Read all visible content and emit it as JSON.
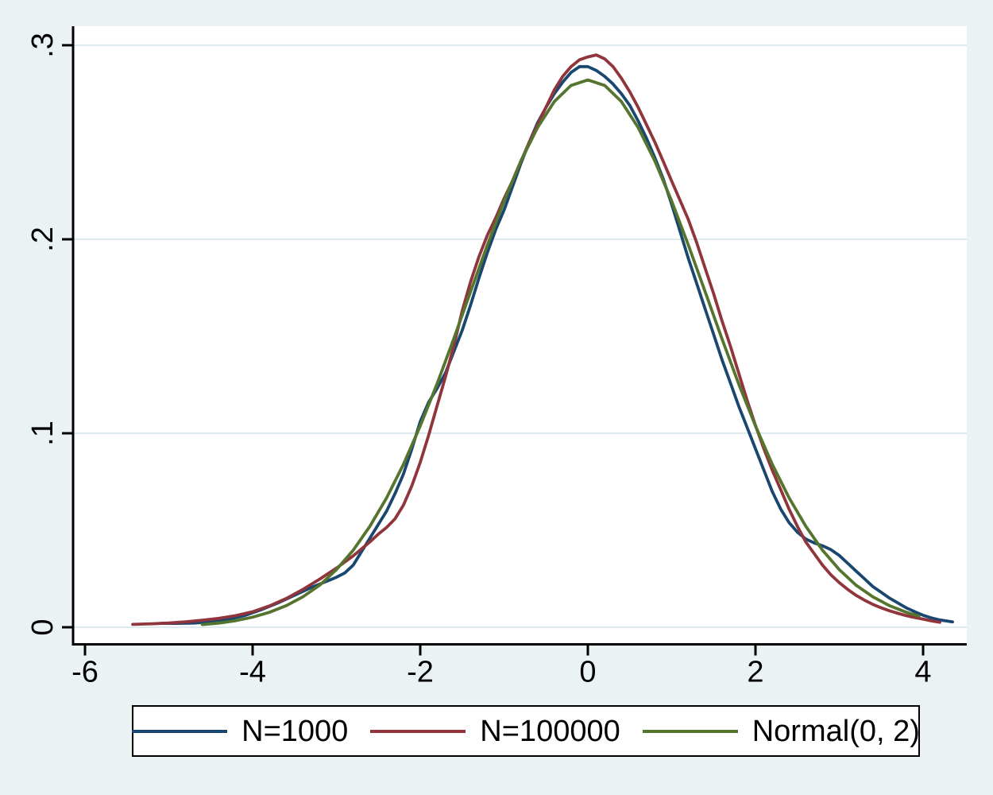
{
  "colors": {
    "background": "#eaf2f3",
    "plot_background": "#ffffff",
    "gridline": "#dfeaee",
    "axis": "#000000",
    "tick_label": "#000000",
    "legend_background": "#ffffff",
    "legend_border": "#000000"
  },
  "legend": {
    "entries": [
      {
        "label": "N=1000",
        "color": "#1a476f"
      },
      {
        "label": "N=100000",
        "color": "#90353b"
      },
      {
        "label": "Normal(0, 2)",
        "color": "#55752f"
      }
    ]
  },
  "chart_data": {
    "type": "line",
    "title": "",
    "xlabel": "",
    "ylabel": "",
    "grid": "horizontal",
    "legend_position": "bottom",
    "xlim": [
      -6.142,
      4.521
    ],
    "ylim": [
      -0.0088,
      0.3098
    ],
    "x_ticks": [
      -6,
      -4,
      -2,
      0,
      2,
      4
    ],
    "x_tick_labels": [
      "-6",
      "-4",
      "-2",
      "0",
      "2",
      "4"
    ],
    "y_ticks": [
      0,
      0.1,
      0.2,
      0.3
    ],
    "y_tick_labels": [
      "0",
      ".1",
      ".2",
      ".3"
    ],
    "series": [
      {
        "name": "N=1000",
        "color": "#1a476f",
        "points": [
          [
            -5.1,
            0.002
          ],
          [
            -4.9,
            0.002
          ],
          [
            -4.7,
            0.0022
          ],
          [
            -4.5,
            0.0028
          ],
          [
            -4.3,
            0.004
          ],
          [
            -4.1,
            0.006
          ],
          [
            -3.9,
            0.009
          ],
          [
            -3.7,
            0.0125
          ],
          [
            -3.5,
            0.0165
          ],
          [
            -3.3,
            0.0205
          ],
          [
            -3.1,
            0.024
          ],
          [
            -3.0,
            0.0258
          ],
          [
            -2.9,
            0.028
          ],
          [
            -2.8,
            0.032
          ],
          [
            -2.7,
            0.039
          ],
          [
            -2.6,
            0.046
          ],
          [
            -2.5,
            0.053
          ],
          [
            -2.4,
            0.06
          ],
          [
            -2.3,
            0.069
          ],
          [
            -2.2,
            0.079
          ],
          [
            -2.1,
            0.092
          ],
          [
            -2.0,
            0.106
          ],
          [
            -1.9,
            0.116
          ],
          [
            -1.8,
            0.123
          ],
          [
            -1.7,
            0.131
          ],
          [
            -1.6,
            0.142
          ],
          [
            -1.5,
            0.153
          ],
          [
            -1.4,
            0.166
          ],
          [
            -1.3,
            0.18
          ],
          [
            -1.2,
            0.193
          ],
          [
            -1.1,
            0.205
          ],
          [
            -1.0,
            0.215
          ],
          [
            -0.9,
            0.227
          ],
          [
            -0.8,
            0.239
          ],
          [
            -0.7,
            0.25
          ],
          [
            -0.6,
            0.26
          ],
          [
            -0.5,
            0.268
          ],
          [
            -0.4,
            0.275
          ],
          [
            -0.3,
            0.281
          ],
          [
            -0.2,
            0.286
          ],
          [
            -0.1,
            0.289
          ],
          [
            0.0,
            0.289
          ],
          [
            0.1,
            0.287
          ],
          [
            0.2,
            0.284
          ],
          [
            0.3,
            0.28
          ],
          [
            0.4,
            0.275
          ],
          [
            0.5,
            0.269
          ],
          [
            0.6,
            0.261
          ],
          [
            0.7,
            0.252
          ],
          [
            0.8,
            0.242
          ],
          [
            0.9,
            0.231
          ],
          [
            1.0,
            0.218
          ],
          [
            1.1,
            0.204
          ],
          [
            1.2,
            0.19
          ],
          [
            1.3,
            0.177
          ],
          [
            1.4,
            0.164
          ],
          [
            1.5,
            0.151
          ],
          [
            1.6,
            0.138
          ],
          [
            1.7,
            0.126
          ],
          [
            1.8,
            0.114
          ],
          [
            1.9,
            0.103
          ],
          [
            2.0,
            0.092
          ],
          [
            2.1,
            0.081
          ],
          [
            2.2,
            0.07
          ],
          [
            2.3,
            0.061
          ],
          [
            2.4,
            0.054
          ],
          [
            2.5,
            0.049
          ],
          [
            2.6,
            0.0455
          ],
          [
            2.7,
            0.0435
          ],
          [
            2.8,
            0.042
          ],
          [
            2.9,
            0.04
          ],
          [
            3.0,
            0.037
          ],
          [
            3.1,
            0.033
          ],
          [
            3.2,
            0.029
          ],
          [
            3.3,
            0.025
          ],
          [
            3.4,
            0.021
          ],
          [
            3.5,
            0.018
          ],
          [
            3.6,
            0.015
          ],
          [
            3.7,
            0.0125
          ],
          [
            3.8,
            0.01
          ],
          [
            3.9,
            0.008
          ],
          [
            4.0,
            0.0062
          ],
          [
            4.1,
            0.0048
          ],
          [
            4.2,
            0.0038
          ],
          [
            4.35,
            0.0028
          ]
        ]
      },
      {
        "name": "N=100000",
        "color": "#90353b",
        "points": [
          [
            -5.43,
            0.0015
          ],
          [
            -5.2,
            0.0018
          ],
          [
            -5.0,
            0.0022
          ],
          [
            -4.8,
            0.0028
          ],
          [
            -4.6,
            0.0036
          ],
          [
            -4.4,
            0.0046
          ],
          [
            -4.2,
            0.006
          ],
          [
            -4.0,
            0.008
          ],
          [
            -3.8,
            0.011
          ],
          [
            -3.6,
            0.0148
          ],
          [
            -3.4,
            0.0195
          ],
          [
            -3.2,
            0.0248
          ],
          [
            -3.0,
            0.0305
          ],
          [
            -2.8,
            0.0368
          ],
          [
            -2.6,
            0.044
          ],
          [
            -2.5,
            0.048
          ],
          [
            -2.4,
            0.0515
          ],
          [
            -2.3,
            0.056
          ],
          [
            -2.2,
            0.063
          ],
          [
            -2.1,
            0.073
          ],
          [
            -2.0,
            0.085
          ],
          [
            -1.9,
            0.099
          ],
          [
            -1.8,
            0.114
          ],
          [
            -1.7,
            0.129
          ],
          [
            -1.6,
            0.145
          ],
          [
            -1.5,
            0.163
          ],
          [
            -1.4,
            0.178
          ],
          [
            -1.3,
            0.191
          ],
          [
            -1.2,
            0.202
          ],
          [
            -1.1,
            0.211
          ],
          [
            -1.0,
            0.221
          ],
          [
            -0.9,
            0.23
          ],
          [
            -0.8,
            0.24
          ],
          [
            -0.7,
            0.25
          ],
          [
            -0.6,
            0.259
          ],
          [
            -0.5,
            0.268
          ],
          [
            -0.4,
            0.277
          ],
          [
            -0.3,
            0.284
          ],
          [
            -0.2,
            0.289
          ],
          [
            -0.1,
            0.2925
          ],
          [
            0.0,
            0.294
          ],
          [
            0.1,
            0.295
          ],
          [
            0.2,
            0.293
          ],
          [
            0.3,
            0.289
          ],
          [
            0.4,
            0.283
          ],
          [
            0.5,
            0.276
          ],
          [
            0.6,
            0.268
          ],
          [
            0.7,
            0.259
          ],
          [
            0.8,
            0.25
          ],
          [
            0.9,
            0.24
          ],
          [
            1.0,
            0.23
          ],
          [
            1.1,
            0.22
          ],
          [
            1.2,
            0.21
          ],
          [
            1.3,
            0.198
          ],
          [
            1.4,
            0.185
          ],
          [
            1.5,
            0.172
          ],
          [
            1.6,
            0.158
          ],
          [
            1.7,
            0.145
          ],
          [
            1.8,
            0.131
          ],
          [
            1.9,
            0.117
          ],
          [
            2.0,
            0.104
          ],
          [
            2.1,
            0.092
          ],
          [
            2.2,
            0.081
          ],
          [
            2.3,
            0.071
          ],
          [
            2.4,
            0.061
          ],
          [
            2.5,
            0.052
          ],
          [
            2.6,
            0.044
          ],
          [
            2.7,
            0.038
          ],
          [
            2.8,
            0.032
          ],
          [
            2.9,
            0.027
          ],
          [
            3.0,
            0.023
          ],
          [
            3.1,
            0.0195
          ],
          [
            3.2,
            0.0165
          ],
          [
            3.3,
            0.014
          ],
          [
            3.4,
            0.0118
          ],
          [
            3.5,
            0.01
          ],
          [
            3.6,
            0.0085
          ],
          [
            3.7,
            0.0072
          ],
          [
            3.8,
            0.006
          ],
          [
            3.9,
            0.005
          ],
          [
            4.0,
            0.0042
          ],
          [
            4.1,
            0.0033
          ],
          [
            4.2,
            0.0026
          ]
        ]
      },
      {
        "name": "Normal(0, 2)",
        "color": "#55752f",
        "points": [
          [
            -4.6,
            0.0014
          ],
          [
            -4.4,
            0.0022
          ],
          [
            -4.2,
            0.0034
          ],
          [
            -4.0,
            0.0052
          ],
          [
            -3.8,
            0.0077
          ],
          [
            -3.6,
            0.0111
          ],
          [
            -3.4,
            0.0157
          ],
          [
            -3.2,
            0.0217
          ],
          [
            -3.0,
            0.0297
          ],
          [
            -2.8,
            0.0397
          ],
          [
            -2.6,
            0.0521
          ],
          [
            -2.4,
            0.0668
          ],
          [
            -2.2,
            0.084
          ],
          [
            -2.0,
            0.1038
          ],
          [
            -1.8,
            0.1254
          ],
          [
            -1.6,
            0.1487
          ],
          [
            -1.4,
            0.1729
          ],
          [
            -1.2,
            0.1969
          ],
          [
            -1.0,
            0.2197
          ],
          [
            -0.8,
            0.2403
          ],
          [
            -0.6,
            0.2576
          ],
          [
            -0.4,
            0.271
          ],
          [
            -0.2,
            0.2793
          ],
          [
            0.0,
            0.2821
          ],
          [
            0.2,
            0.2793
          ],
          [
            0.4,
            0.271
          ],
          [
            0.6,
            0.2576
          ],
          [
            0.8,
            0.2403
          ],
          [
            1.0,
            0.2197
          ],
          [
            1.2,
            0.1969
          ],
          [
            1.4,
            0.1729
          ],
          [
            1.6,
            0.1487
          ],
          [
            1.8,
            0.1254
          ],
          [
            2.0,
            0.1038
          ],
          [
            2.2,
            0.084
          ],
          [
            2.4,
            0.0668
          ],
          [
            2.6,
            0.0521
          ],
          [
            2.8,
            0.0397
          ],
          [
            3.0,
            0.0297
          ],
          [
            3.2,
            0.0217
          ],
          [
            3.4,
            0.0157
          ],
          [
            3.6,
            0.0111
          ],
          [
            3.8,
            0.0077
          ],
          [
            3.95,
            0.0057
          ]
        ]
      }
    ]
  }
}
